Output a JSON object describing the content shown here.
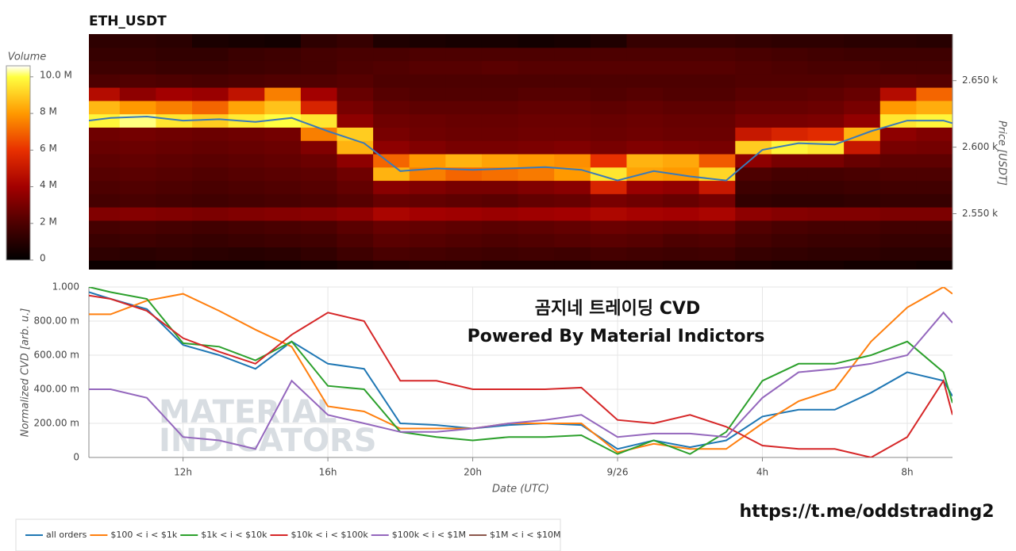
{
  "chart_data": [
    {
      "type": "heatmap",
      "title": "ETH_USDT",
      "ylabel": "Price [USDT]",
      "xlim": [
        9.4,
        33.25
      ],
      "ylim": [
        2508,
        2685
      ],
      "yticks": [
        {
          "value": 2550,
          "label": "2.550 k"
        },
        {
          "value": 2600,
          "label": "2.600 k"
        },
        {
          "value": 2650,
          "label": "2.650 k"
        }
      ],
      "x_bins": [
        9.25,
        10.25,
        11.25,
        12.25,
        13.25,
        14.25,
        15.25,
        16.25,
        17.25,
        18.25,
        19.25,
        20.25,
        21.25,
        22.25,
        23.25,
        24.25,
        25.25,
        26.25,
        27.25,
        28.25,
        29.25,
        30.25,
        31.25,
        32.25,
        33.25
      ],
      "y_bins": [
        2505,
        2515,
        2525,
        2535,
        2545,
        2555,
        2565,
        2575,
        2585,
        2595,
        2605,
        2615,
        2625,
        2635,
        2645,
        2655,
        2665,
        2675,
        2685
      ],
      "z": [
        [
          0.3,
          0.3,
          0.4,
          0.3,
          0.3,
          0.4,
          0.5,
          0.7,
          0.8,
          0.9,
          0.9,
          0.8,
          0.8,
          0.8,
          0.9,
          0.9,
          0.8,
          0.8,
          0.7,
          0.6,
          0.6,
          0.5,
          0.5,
          0.4
        ],
        [
          1.2,
          1.1,
          1.2,
          1.1,
          1.0,
          1.1,
          1.3,
          1.6,
          1.9,
          1.8,
          1.7,
          1.6,
          1.7,
          1.6,
          1.8,
          1.7,
          1.6,
          1.7,
          1.4,
          1.3,
          1.2,
          1.2,
          1.1,
          1.1
        ],
        [
          1.5,
          1.6,
          1.5,
          1.4,
          1.5,
          1.6,
          1.7,
          2.0,
          2.3,
          2.2,
          2.1,
          2.0,
          2.1,
          2.2,
          2.3,
          2.2,
          2.0,
          2.1,
          1.8,
          1.6,
          1.5,
          1.5,
          1.4,
          1.4
        ],
        [
          1.8,
          1.9,
          1.8,
          1.7,
          1.8,
          1.9,
          2.0,
          2.3,
          2.6,
          2.5,
          2.4,
          2.3,
          2.4,
          2.5,
          2.7,
          2.6,
          2.5,
          2.6,
          2.1,
          1.9,
          1.8,
          1.8,
          1.7,
          1.7
        ],
        [
          3.2,
          3.3,
          3.2,
          3.1,
          3.2,
          3.3,
          3.4,
          3.6,
          4.2,
          4.0,
          3.9,
          3.8,
          3.9,
          4.0,
          4.3,
          4.1,
          4.0,
          4.2,
          3.5,
          3.3,
          3.2,
          3.2,
          3.1,
          3.1
        ],
        [
          1.8,
          1.9,
          1.8,
          1.7,
          1.8,
          1.9,
          2.0,
          2.2,
          2.6,
          2.5,
          2.4,
          2.3,
          2.5,
          2.6,
          3.0,
          2.8,
          2.6,
          2.9,
          1.3,
          1.2,
          1.2,
          1.3,
          1.4,
          1.4
        ],
        [
          2.0,
          2.1,
          2.0,
          1.9,
          2.0,
          2.1,
          2.2,
          2.5,
          3.4,
          3.2,
          3.0,
          3.0,
          3.2,
          3.4,
          5.5,
          3.8,
          3.6,
          5.0,
          1.6,
          1.5,
          1.5,
          1.6,
          1.7,
          1.7
        ],
        [
          2.2,
          2.3,
          2.2,
          2.1,
          2.2,
          2.3,
          2.4,
          2.8,
          8.5,
          7.5,
          7.0,
          7.2,
          7.4,
          8.0,
          9.5,
          8.2,
          8.0,
          9.2,
          2.0,
          1.8,
          1.8,
          1.9,
          2.0,
          2.0
        ],
        [
          2.4,
          2.5,
          2.4,
          2.3,
          2.4,
          2.5,
          2.7,
          3.5,
          7.0,
          8.0,
          8.5,
          8.2,
          8.0,
          7.8,
          6.0,
          8.5,
          8.3,
          6.8,
          3.5,
          3.0,
          3.0,
          2.6,
          2.4,
          2.4
        ],
        [
          2.6,
          2.7,
          2.6,
          2.5,
          2.6,
          2.7,
          3.2,
          8.5,
          3.5,
          3.2,
          3.0,
          3.0,
          3.1,
          3.2,
          3.0,
          3.2,
          3.1,
          3.0,
          9.0,
          9.8,
          9.5,
          5.0,
          3.0,
          2.9
        ],
        [
          2.8,
          2.9,
          2.8,
          2.7,
          2.8,
          2.9,
          7.5,
          9.0,
          3.0,
          2.8,
          2.7,
          2.7,
          2.8,
          2.8,
          2.7,
          2.8,
          2.7,
          2.7,
          5.0,
          5.5,
          5.8,
          8.5,
          3.5,
          3.2
        ],
        [
          9.8,
          10.2,
          9.5,
          9.0,
          9.6,
          10.0,
          9.5,
          3.5,
          2.8,
          2.7,
          2.6,
          2.6,
          2.7,
          2.7,
          2.6,
          2.7,
          2.6,
          2.6,
          3.0,
          3.0,
          3.1,
          3.6,
          9.5,
          9.8
        ],
        [
          8.6,
          8.0,
          7.5,
          7.0,
          8.2,
          8.8,
          5.5,
          3.0,
          2.5,
          2.4,
          2.4,
          2.4,
          2.5,
          2.5,
          2.4,
          2.5,
          2.4,
          2.4,
          2.6,
          2.6,
          2.7,
          3.0,
          8.0,
          8.4
        ],
        [
          4.5,
          3.5,
          4.0,
          3.8,
          4.8,
          7.5,
          4.0,
          2.6,
          2.2,
          2.1,
          2.1,
          2.1,
          2.2,
          2.2,
          2.1,
          2.2,
          2.1,
          2.1,
          2.3,
          2.3,
          2.4,
          2.6,
          4.5,
          7.0
        ],
        [
          2.0,
          2.1,
          2.0,
          1.9,
          2.0,
          2.1,
          2.1,
          2.2,
          2.0,
          2.0,
          2.0,
          2.0,
          2.0,
          2.0,
          2.0,
          2.0,
          2.0,
          2.0,
          2.1,
          2.1,
          2.1,
          2.2,
          2.3,
          2.2
        ],
        [
          1.6,
          1.6,
          1.5,
          1.5,
          1.6,
          1.7,
          1.8,
          2.0,
          2.1,
          2.2,
          2.2,
          2.3,
          2.2,
          2.2,
          2.2,
          2.2,
          2.2,
          2.2,
          2.1,
          2.0,
          1.9,
          1.9,
          1.8,
          1.8
        ],
        [
          1.4,
          1.4,
          1.3,
          1.3,
          1.5,
          1.6,
          1.8,
          1.9,
          1.9,
          2.0,
          2.0,
          2.0,
          2.0,
          2.0,
          2.0,
          2.0,
          2.0,
          2.0,
          1.9,
          1.8,
          1.7,
          1.6,
          1.6,
          1.6
        ],
        [
          1.2,
          1.2,
          1.1,
          0.7,
          0.6,
          0.5,
          1.2,
          1.4,
          0.8,
          0.7,
          0.6,
          0.6,
          0.5,
          0.6,
          0.8,
          1.4,
          1.4,
          1.4,
          1.3,
          1.2,
          1.2,
          1.1,
          1.1,
          1.0
        ]
      ],
      "colorbar": {
        "title": "Volume",
        "lim": [
          0,
          10.6
        ],
        "ticks": [
          0,
          {
            "value": 2,
            "label": "2 M"
          },
          {
            "value": 4,
            "label": "4 M"
          },
          {
            "value": 6,
            "label": "6 M"
          },
          {
            "value": 8,
            "label": "8 M"
          },
          {
            "value": 10,
            "label": "10.0 M"
          }
        ],
        "colorscale": [
          [
            0,
            "#000000"
          ],
          [
            2,
            "#4d0000"
          ],
          [
            4,
            "#a30000"
          ],
          [
            6,
            "#e83000"
          ],
          [
            8,
            "#ff9900"
          ],
          [
            10,
            "#ffff40"
          ],
          [
            10.6,
            "#ffffff"
          ]
        ]
      },
      "price": {
        "color": "#3a7ab8",
        "x": [
          9.4,
          10,
          11,
          12,
          13,
          14,
          15,
          16,
          17,
          18,
          19,
          20,
          21,
          22,
          23,
          24,
          25,
          26,
          27,
          28,
          29,
          30,
          31,
          32,
          33,
          33.25
        ],
        "values": [
          2620,
          2622,
          2623,
          2620,
          2621,
          2619,
          2622,
          2612,
          2603,
          2582,
          2584,
          2583,
          2584,
          2585,
          2583,
          2575,
          2582,
          2578,
          2575,
          2598,
          2603,
          2602,
          2612,
          2620,
          2620,
          2618
        ]
      }
    },
    {
      "type": "line",
      "xlabel": "Date (UTC)",
      "ylabel": "Normalized CVD [arb. u.]",
      "xlim": [
        9.4,
        33.25
      ],
      "ylim": [
        0,
        1.0
      ],
      "grid": true,
      "xticks": [
        {
          "value": 12,
          "label": "12h"
        },
        {
          "value": 16,
          "label": "16h"
        },
        {
          "value": 20,
          "label": "20h"
        },
        {
          "value": 24,
          "label": "9/26"
        },
        {
          "value": 28,
          "label": "4h"
        },
        {
          "value": 32,
          "label": "8h"
        }
      ],
      "yticks": [
        0,
        {
          "value": 0.2,
          "label": "200.00 m"
        },
        {
          "value": 0.4,
          "label": "400.00 m"
        },
        {
          "value": 0.6,
          "label": "600.00 m"
        },
        {
          "value": 0.8,
          "label": "800.00 m"
        },
        {
          "value": 1.0,
          "label": "1.000"
        }
      ],
      "annotations": [
        "곰지네 트레이딩 CVD",
        "Powered By Material Indictors"
      ],
      "watermark": [
        "MATERIAL",
        "INDICATORS"
      ],
      "x": [
        9.4,
        10,
        11,
        12,
        13,
        14,
        15,
        16,
        17,
        18,
        19,
        20,
        21,
        22,
        23,
        24,
        25,
        26,
        27,
        28,
        29,
        30,
        31,
        32,
        33,
        33.25
      ],
      "series": [
        {
          "name": "all orders",
          "color": "#1f77b4",
          "values": [
            0.97,
            0.93,
            0.87,
            0.66,
            0.6,
            0.52,
            0.68,
            0.55,
            0.52,
            0.2,
            0.19,
            0.17,
            0.19,
            0.2,
            0.19,
            0.05,
            0.1,
            0.06,
            0.1,
            0.24,
            0.28,
            0.28,
            0.38,
            0.5,
            0.45,
            0.36
          ]
        },
        {
          "name": "$100 < i < $1k",
          "color": "#ff7f0e",
          "values": [
            0.84,
            0.84,
            0.92,
            0.96,
            0.86,
            0.75,
            0.65,
            0.3,
            0.27,
            0.17,
            0.17,
            0.17,
            0.2,
            0.2,
            0.2,
            0.03,
            0.08,
            0.05,
            0.05,
            0.2,
            0.33,
            0.4,
            0.68,
            0.88,
            1.0,
            0.96
          ]
        },
        {
          "name": "$1k < i < $10k",
          "color": "#2ca02c",
          "values": [
            1.0,
            0.97,
            0.93,
            0.67,
            0.65,
            0.57,
            0.68,
            0.42,
            0.4,
            0.15,
            0.12,
            0.1,
            0.12,
            0.12,
            0.13,
            0.02,
            0.1,
            0.02,
            0.15,
            0.45,
            0.55,
            0.55,
            0.6,
            0.68,
            0.5,
            0.32
          ]
        },
        {
          "name": "$10k < i < $100k",
          "color": "#d62728",
          "values": [
            0.95,
            0.93,
            0.86,
            0.7,
            0.62,
            0.55,
            0.72,
            0.85,
            0.8,
            0.45,
            0.45,
            0.4,
            0.4,
            0.4,
            0.41,
            0.22,
            0.2,
            0.25,
            0.18,
            0.07,
            0.05,
            0.05,
            0.0,
            0.12,
            0.45,
            0.25
          ]
        },
        {
          "name": "$100k < i < $1M",
          "color": "#9467bd",
          "values": [
            0.4,
            0.4,
            0.35,
            0.12,
            0.1,
            0.05,
            0.45,
            0.25,
            0.2,
            0.15,
            0.15,
            0.17,
            0.2,
            0.22,
            0.25,
            0.12,
            0.14,
            0.14,
            0.12,
            0.35,
            0.5,
            0.52,
            0.55,
            0.6,
            0.85,
            0.79
          ]
        },
        {
          "name": "$1M < i < $10M",
          "color": "#8c564b",
          "values": [
            null,
            null,
            null,
            null,
            null,
            null,
            null,
            null,
            null,
            null,
            null,
            null,
            null,
            null,
            null,
            null,
            null,
            null,
            null,
            null,
            null,
            null,
            null,
            null,
            null,
            null
          ]
        }
      ]
    }
  ],
  "footer_link": "https://t.me/oddstrading2"
}
